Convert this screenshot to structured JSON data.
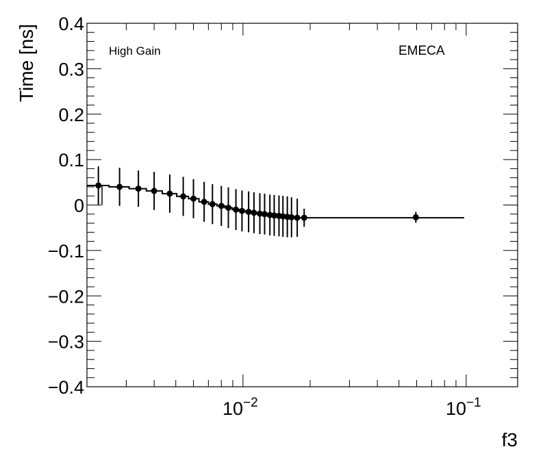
{
  "chart_data": {
    "type": "scatter",
    "title": "",
    "xlabel": "f3",
    "ylabel": "Time [ns]",
    "x_scale": "log",
    "xlim": [
      0.002,
      0.17
    ],
    "ylim": [
      -0.4,
      0.4
    ],
    "grid": false,
    "y_ticks": [
      {
        "value": -0.4,
        "label": "−0.4"
      },
      {
        "value": -0.3,
        "label": "−0.3"
      },
      {
        "value": -0.2,
        "label": "−0.2"
      },
      {
        "value": -0.1,
        "label": "−0.1"
      },
      {
        "value": 0,
        "label": "0"
      },
      {
        "value": 0.1,
        "label": "0.1"
      },
      {
        "value": 0.2,
        "label": "0.2"
      },
      {
        "value": 0.3,
        "label": "0.3"
      },
      {
        "value": 0.4,
        "label": "0.4"
      }
    ],
    "x_ticks": [
      {
        "value": 0.01,
        "base": "10",
        "exp": "−2"
      },
      {
        "value": 0.1,
        "base": "10",
        "exp": "−1"
      }
    ],
    "annotations": {
      "left": "High Gain",
      "right": "EMECA"
    },
    "points": [
      {
        "x": 0.00225,
        "y": 0.043,
        "err": 0.042
      },
      {
        "x": 0.0028,
        "y": 0.04,
        "err": 0.042
      },
      {
        "x": 0.0034,
        "y": 0.036,
        "err": 0.04
      },
      {
        "x": 0.004,
        "y": 0.031,
        "err": 0.042
      },
      {
        "x": 0.0047,
        "y": 0.025,
        "err": 0.042
      },
      {
        "x": 0.0054,
        "y": 0.019,
        "err": 0.043
      },
      {
        "x": 0.006,
        "y": 0.014,
        "err": 0.043
      },
      {
        "x": 0.0067,
        "y": 0.007,
        "err": 0.044
      },
      {
        "x": 0.0073,
        "y": 0.002,
        "err": 0.044
      },
      {
        "x": 0.008,
        "y": -0.002,
        "err": 0.044
      },
      {
        "x": 0.0086,
        "y": -0.006,
        "err": 0.045
      },
      {
        "x": 0.0093,
        "y": -0.01,
        "err": 0.045
      },
      {
        "x": 0.0099,
        "y": -0.013,
        "err": 0.045
      },
      {
        "x": 0.0106,
        "y": -0.015,
        "err": 0.045
      },
      {
        "x": 0.0112,
        "y": -0.017,
        "err": 0.045
      },
      {
        "x": 0.0119,
        "y": -0.019,
        "err": 0.045
      },
      {
        "x": 0.0125,
        "y": -0.02,
        "err": 0.045
      },
      {
        "x": 0.0132,
        "y": -0.022,
        "err": 0.045
      },
      {
        "x": 0.0138,
        "y": -0.023,
        "err": 0.045
      },
      {
        "x": 0.0145,
        "y": -0.024,
        "err": 0.045
      },
      {
        "x": 0.0151,
        "y": -0.025,
        "err": 0.045
      },
      {
        "x": 0.0158,
        "y": -0.026,
        "err": 0.045
      },
      {
        "x": 0.0165,
        "y": -0.027,
        "err": 0.044
      },
      {
        "x": 0.0175,
        "y": -0.028,
        "err": 0.042
      },
      {
        "x": 0.0188,
        "y": -0.028,
        "err": 0.02
      },
      {
        "x": 0.0595,
        "y": -0.027,
        "err": 0.012
      }
    ],
    "step_line": [
      [
        0.002,
        0.043
      ],
      [
        0.00251,
        0.043
      ],
      [
        0.00251,
        0.04
      ],
      [
        0.00309,
        0.04
      ],
      [
        0.00309,
        0.036
      ],
      [
        0.00369,
        0.036
      ],
      [
        0.00369,
        0.031
      ],
      [
        0.00435,
        0.031
      ],
      [
        0.00435,
        0.025
      ],
      [
        0.00505,
        0.025
      ],
      [
        0.00505,
        0.019
      ],
      [
        0.0057,
        0.019
      ],
      [
        0.0057,
        0.014
      ],
      [
        0.00635,
        0.014
      ],
      [
        0.00635,
        0.007
      ],
      [
        0.007,
        0.007
      ],
      [
        0.007,
        0.002
      ],
      [
        0.00765,
        0.002
      ],
      [
        0.00765,
        -0.002
      ],
      [
        0.0083,
        -0.002
      ],
      [
        0.0083,
        -0.006
      ],
      [
        0.00895,
        -0.006
      ],
      [
        0.00895,
        -0.01
      ],
      [
        0.0096,
        -0.01
      ],
      [
        0.0096,
        -0.013
      ],
      [
        0.01025,
        -0.013
      ],
      [
        0.01025,
        -0.015
      ],
      [
        0.0109,
        -0.015
      ],
      [
        0.0109,
        -0.017
      ],
      [
        0.01155,
        -0.017
      ],
      [
        0.01155,
        -0.019
      ],
      [
        0.0122,
        -0.019
      ],
      [
        0.0122,
        -0.02
      ],
      [
        0.01285,
        -0.02
      ],
      [
        0.01285,
        -0.022
      ],
      [
        0.0135,
        -0.022
      ],
      [
        0.0135,
        -0.023
      ],
      [
        0.01415,
        -0.023
      ],
      [
        0.01415,
        -0.024
      ],
      [
        0.0148,
        -0.024
      ],
      [
        0.0148,
        -0.025
      ],
      [
        0.01545,
        -0.025
      ],
      [
        0.01545,
        -0.026
      ],
      [
        0.0161,
        -0.026
      ],
      [
        0.0161,
        -0.027
      ],
      [
        0.017,
        -0.027
      ],
      [
        0.017,
        -0.028
      ],
      [
        0.098,
        -0.028
      ]
    ]
  }
}
